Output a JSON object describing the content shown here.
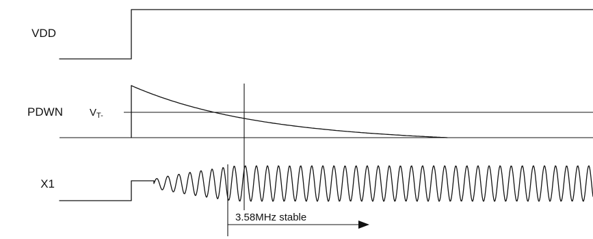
{
  "signals": {
    "vdd_label": "VDD",
    "pdwn_label": "PDWN",
    "x1_label": "X1"
  },
  "threshold": {
    "main": "V",
    "sub": "T-"
  },
  "annotation": {
    "stable_label": "3.58MHz stable"
  },
  "colors": {
    "line": "#111111",
    "background": "#ffffff"
  }
}
